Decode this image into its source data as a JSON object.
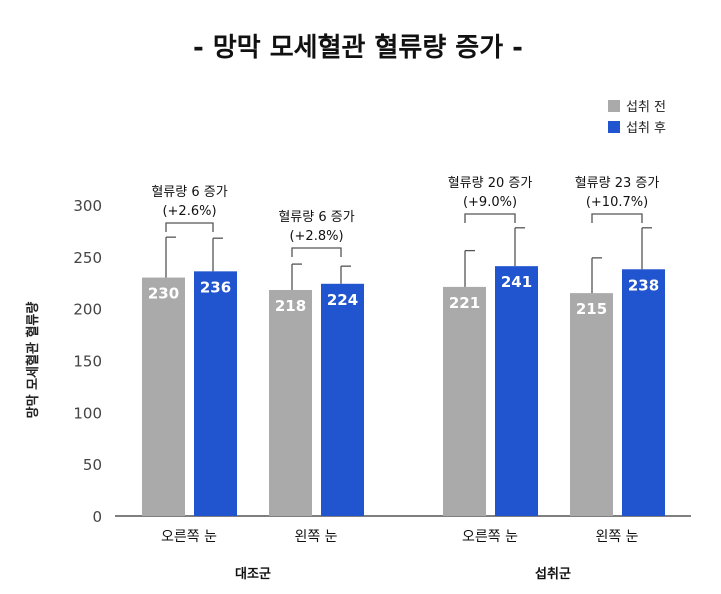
{
  "chart_data": {
    "type": "bar",
    "title": "- 망막 모세혈관 혈류량 증가 -",
    "ylabel": "망막 모세혈관 혈류량",
    "xlabel": "",
    "ylim": [
      0,
      300
    ],
    "yticks": [
      0,
      50,
      100,
      150,
      200,
      250,
      300
    ],
    "groups": [
      {
        "label": "대조군",
        "categories": [
          "오른쪽 눈",
          "왼쪽 눈"
        ]
      },
      {
        "label": "섭취군",
        "categories": [
          "오른쪽 눈",
          "왼쪽 눈"
        ]
      }
    ],
    "categories": [
      "오른쪽 눈",
      "왼쪽 눈",
      "오른쪽 눈",
      "왼쪽 눈"
    ],
    "series": [
      {
        "name": "섭취 전",
        "color": "#aaaaaa",
        "values": [
          230,
          218,
          221,
          215
        ],
        "error_top": [
          269,
          243,
          256,
          249
        ]
      },
      {
        "name": "섭취 후",
        "color": "#2154cf",
        "values": [
          236,
          224,
          241,
          238
        ],
        "error_top": [
          268,
          241,
          278,
          278
        ]
      }
    ],
    "annotations": [
      {
        "line1": "혈류량 6 증가",
        "line2": "(+2.6%)"
      },
      {
        "line1": "혈류량 6 증가",
        "line2": "(+2.8%)"
      },
      {
        "line1": "혈류량 20 증가",
        "line2": "(+9.0%)"
      },
      {
        "line1": "혈류량 23 증가",
        "line2": "(+10.7%)"
      }
    ],
    "legend_position": "top-right",
    "grid": false
  }
}
